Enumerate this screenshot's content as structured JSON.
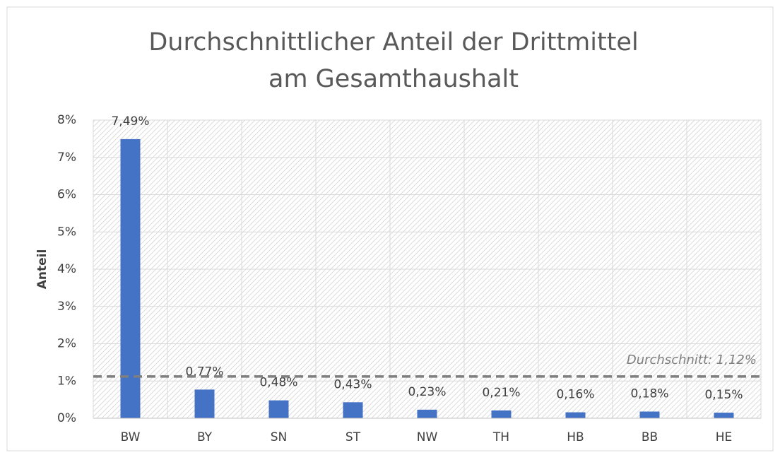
{
  "chart_data": {
    "type": "bar",
    "title": "Durchschnittlicher Anteil der Drittmittel am Gesamthaushalt",
    "y_label": "Anteil",
    "categories": [
      "BW",
      "BY",
      "SN",
      "ST",
      "NW",
      "TH",
      "HB",
      "BB",
      "HE"
    ],
    "values": [
      7.49,
      0.77,
      0.48,
      0.43,
      0.23,
      0.21,
      0.16,
      0.18,
      0.15
    ],
    "value_labels": [
      "7,49%",
      "0,77%",
      "0,48%",
      "0,43%",
      "0,23%",
      "0,21%",
      "0,16%",
      "0,18%",
      "0,15%"
    ],
    "color": "#4472c4",
    "ylim": [
      0,
      8
    ],
    "yticks": [
      {
        "value": 0,
        "label": "0%"
      },
      {
        "value": 1,
        "label": "1%"
      },
      {
        "value": 2,
        "label": "2%"
      },
      {
        "value": 3,
        "label": "3%"
      },
      {
        "value": 4,
        "label": "4%"
      },
      {
        "value": 5,
        "label": "5%"
      },
      {
        "value": 6,
        "label": "6%"
      },
      {
        "value": 7,
        "label": "7%"
      },
      {
        "value": 8,
        "label": "8%"
      }
    ],
    "grid": true,
    "reference_line": {
      "value": 1.12,
      "label": "Durchschnitt: 1,12%"
    }
  }
}
